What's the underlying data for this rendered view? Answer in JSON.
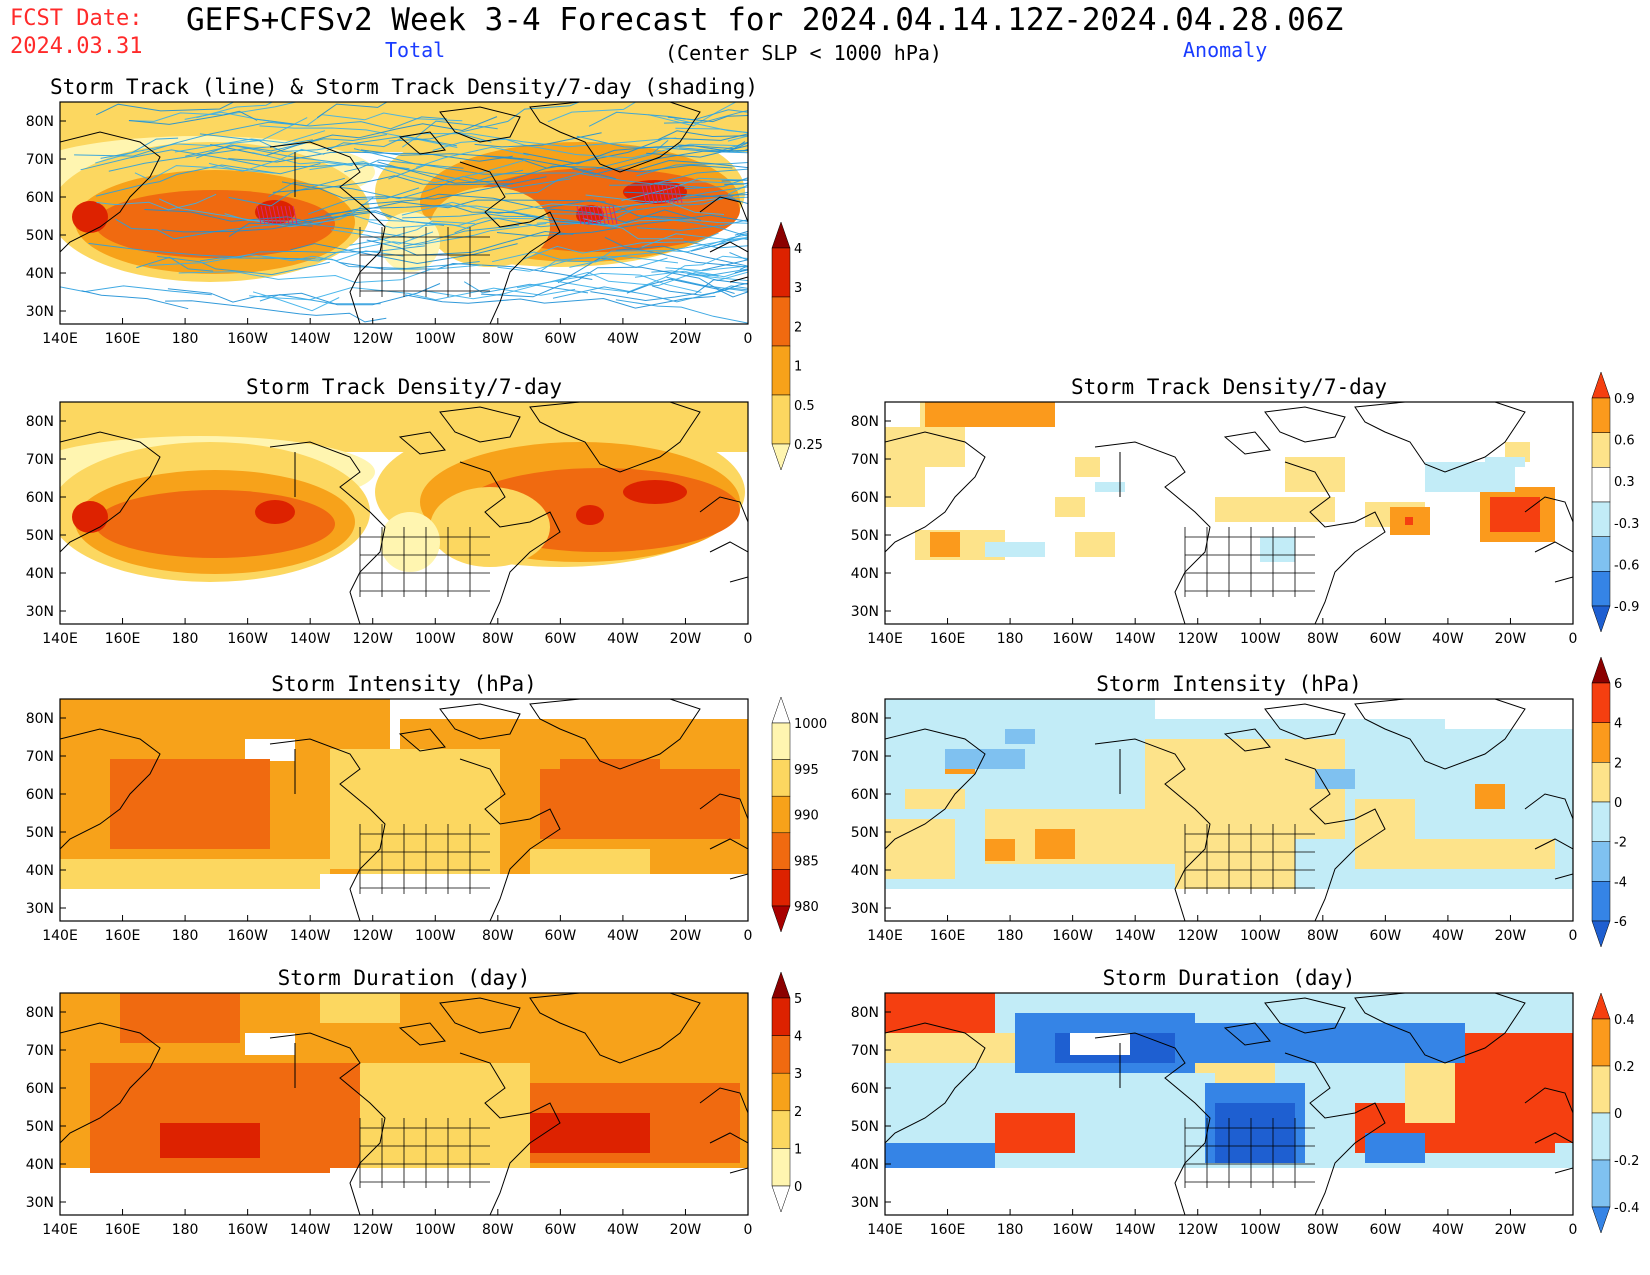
{
  "header": {
    "fcst_label": "FCST Date:",
    "fcst_date": "2024.03.31",
    "title": "GEFS+CFSv2 Week 3-4 Forecast for 2024.04.14.12Z-2024.04.28.06Z",
    "subtitle": "(Center SLP < 1000 hPa)",
    "total_label": "Total",
    "anomaly_label": "Anomaly",
    "colors": {
      "fcst": "#ff2a2a",
      "column_labels": "#1a3cff"
    }
  },
  "map_axes": {
    "lat_labels": [
      "80N",
      "70N",
      "60N",
      "50N",
      "40N",
      "30N"
    ],
    "lon_labels": [
      "140E",
      "160E",
      "180",
      "160W",
      "140W",
      "120W",
      "100W",
      "80W",
      "60W",
      "40W",
      "20W",
      "0"
    ]
  },
  "panels": [
    {
      "id": "track",
      "title": "Storm Track (line) & Storm Track Density/7-day (shading)",
      "variant": "track"
    },
    {
      "id": "density-total",
      "title": "Storm Track Density/7-day",
      "variant": "density"
    },
    {
      "id": "density-anom",
      "title": "Storm Track Density/7-day",
      "variant": "density-anom"
    },
    {
      "id": "intensity-total",
      "title": "Storm Intensity (hPa)",
      "variant": "intensity"
    },
    {
      "id": "intensity-anom",
      "title": "Storm Intensity (hPa)",
      "variant": "intensity-anom"
    },
    {
      "id": "duration-total",
      "title": "Storm Duration (day)",
      "variant": "duration"
    },
    {
      "id": "duration-anom",
      "title": "Storm Duration (day)",
      "variant": "duration-anom"
    }
  ],
  "colorbars": [
    {
      "id": "density-total",
      "labels": [
        "4",
        "3",
        "2",
        "1",
        "0.5",
        "0.25"
      ],
      "colors": [
        "#8b0000",
        "#dd2200",
        "#f06a10",
        "#f7a21a",
        "#fcd760",
        "#fff5b0"
      ]
    },
    {
      "id": "density-anom",
      "labels": [
        "0.9",
        "0.6",
        "0.3",
        "-0.3",
        "-0.6",
        "-0.9"
      ],
      "colors": [
        "#f53f10",
        "#fb9a1c",
        "#fde38a",
        "#ffffff",
        "#c2ecf7",
        "#7fc1f0",
        "#3584e6",
        "#1e5fd1"
      ]
    },
    {
      "id": "intensity-total",
      "labels": [
        "1000",
        "995",
        "990",
        "985",
        "980"
      ],
      "colors": [
        "#ffffff",
        "#fff5b0",
        "#fcd760",
        "#f7a21a",
        "#f06a10",
        "#dd2200",
        "#a80000"
      ]
    },
    {
      "id": "intensity-anom",
      "labels": [
        "6",
        "4",
        "2",
        "0",
        "-2",
        "-4",
        "-6"
      ],
      "colors": [
        "#8b0000",
        "#f53f10",
        "#fb9a1c",
        "#fde38a",
        "#c2ecf7",
        "#7fc1f0",
        "#3584e6",
        "#1e5fd1"
      ]
    },
    {
      "id": "duration-total",
      "labels": [
        "5",
        "4",
        "3",
        "2",
        "1",
        "0"
      ],
      "colors": [
        "#8b0000",
        "#dd2200",
        "#f06a10",
        "#f7a21a",
        "#fcd760",
        "#fff5b0",
        "#ffffff"
      ]
    },
    {
      "id": "duration-anom",
      "labels": [
        "0.4",
        "0.2",
        "0",
        "-0.2",
        "-0.4"
      ],
      "colors": [
        "#f53f10",
        "#fb9a1c",
        "#fde38a",
        "#c2ecf7",
        "#7fc1f0",
        "#3584e6"
      ]
    }
  ]
}
